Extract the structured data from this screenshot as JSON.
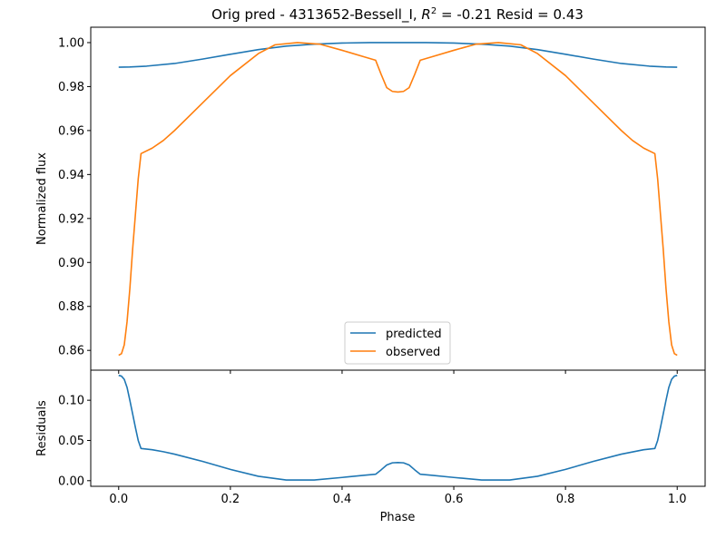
{
  "chart_data": [
    {
      "type": "line",
      "title_prefix": "Orig pred - 4313652-Bessell_I, ",
      "title_r2_symbol": "R",
      "title_r2_exp": "2",
      "title_suffix": " = -0.21 Resid = 0.43",
      "xlabel": "",
      "ylabel": "Normalized flux",
      "xlim": [
        -0.05,
        1.05
      ],
      "ylim": [
        0.851,
        1.007
      ],
      "yticks": [
        "0.86",
        "0.88",
        "0.90",
        "0.92",
        "0.94",
        "0.96",
        "0.98",
        "1.00"
      ],
      "legend_placement": "lower-center",
      "series": [
        {
          "name": "predicted",
          "color": "#1f77b4",
          "x": [
            0.0,
            0.02,
            0.05,
            0.1,
            0.15,
            0.2,
            0.25,
            0.3,
            0.35,
            0.4,
            0.45,
            0.5,
            0.55,
            0.6,
            0.65,
            0.7,
            0.75,
            0.8,
            0.85,
            0.9,
            0.95,
            0.98,
            1.0
          ],
          "y": [
            0.9888,
            0.9889,
            0.9893,
            0.9905,
            0.9925,
            0.9947,
            0.9968,
            0.9984,
            0.9993,
            0.9998,
            1.0,
            1.0,
            1.0,
            0.9998,
            0.9993,
            0.9984,
            0.9968,
            0.9947,
            0.9925,
            0.9905,
            0.9893,
            0.9889,
            0.9888
          ]
        },
        {
          "name": "observed",
          "color": "#ff7f0e",
          "x": [
            0.0,
            0.005,
            0.01,
            0.015,
            0.02,
            0.025,
            0.03,
            0.035,
            0.04,
            0.06,
            0.08,
            0.1,
            0.15,
            0.2,
            0.25,
            0.28,
            0.32,
            0.36,
            0.4,
            0.44,
            0.46,
            0.47,
            0.48,
            0.49,
            0.5,
            0.51,
            0.52,
            0.53,
            0.54,
            0.56,
            0.6,
            0.64,
            0.68,
            0.72,
            0.75,
            0.8,
            0.85,
            0.9,
            0.92,
            0.94,
            0.96,
            0.965,
            0.97,
            0.975,
            0.98,
            0.985,
            0.99,
            0.995,
            1.0
          ],
          "y": [
            0.8578,
            0.8585,
            0.8625,
            0.873,
            0.888,
            0.906,
            0.922,
            0.938,
            0.9495,
            0.952,
            0.9555,
            0.96,
            0.9725,
            0.985,
            0.995,
            0.999,
            1.0,
            0.9993,
            0.9965,
            0.9935,
            0.992,
            0.9855,
            0.9795,
            0.9778,
            0.9775,
            0.9778,
            0.9795,
            0.9855,
            0.992,
            0.9935,
            0.9965,
            0.9993,
            1.0,
            0.999,
            0.995,
            0.985,
            0.9725,
            0.96,
            0.9555,
            0.952,
            0.9495,
            0.938,
            0.922,
            0.906,
            0.888,
            0.873,
            0.8625,
            0.8585,
            0.8578
          ]
        }
      ]
    },
    {
      "type": "line",
      "title": "",
      "xlabel": "Phase",
      "ylabel": "Residuals",
      "xlim": [
        -0.05,
        1.05
      ],
      "ylim": [
        -0.007,
        0.1374
      ],
      "xticks": [
        "0.0",
        "0.2",
        "0.4",
        "0.6",
        "0.8",
        "1.0"
      ],
      "yticks": [
        "0.00",
        "0.05",
        "0.10"
      ],
      "series": [
        {
          "color": "#1f77b4",
          "x": [
            0.0,
            0.005,
            0.01,
            0.015,
            0.02,
            0.025,
            0.03,
            0.035,
            0.04,
            0.06,
            0.08,
            0.1,
            0.15,
            0.2,
            0.25,
            0.3,
            0.35,
            0.4,
            0.44,
            0.46,
            0.47,
            0.48,
            0.49,
            0.5,
            0.51,
            0.52,
            0.53,
            0.54,
            0.56,
            0.6,
            0.65,
            0.7,
            0.75,
            0.8,
            0.85,
            0.9,
            0.94,
            0.96,
            0.965,
            0.97,
            0.975,
            0.98,
            0.985,
            0.99,
            0.995,
            1.0
          ],
          "y": [
            0.131,
            0.13,
            0.126,
            0.116,
            0.1,
            0.083,
            0.066,
            0.05,
            0.04,
            0.0385,
            0.036,
            0.033,
            0.024,
            0.014,
            0.0055,
            0.0008,
            0.0008,
            0.004,
            0.0068,
            0.008,
            0.0135,
            0.0195,
            0.0222,
            0.0225,
            0.0222,
            0.0195,
            0.0135,
            0.008,
            0.0068,
            0.004,
            0.0008,
            0.0008,
            0.0055,
            0.014,
            0.024,
            0.033,
            0.0385,
            0.04,
            0.05,
            0.066,
            0.083,
            0.1,
            0.116,
            0.126,
            0.13,
            0.131
          ]
        }
      ]
    }
  ]
}
